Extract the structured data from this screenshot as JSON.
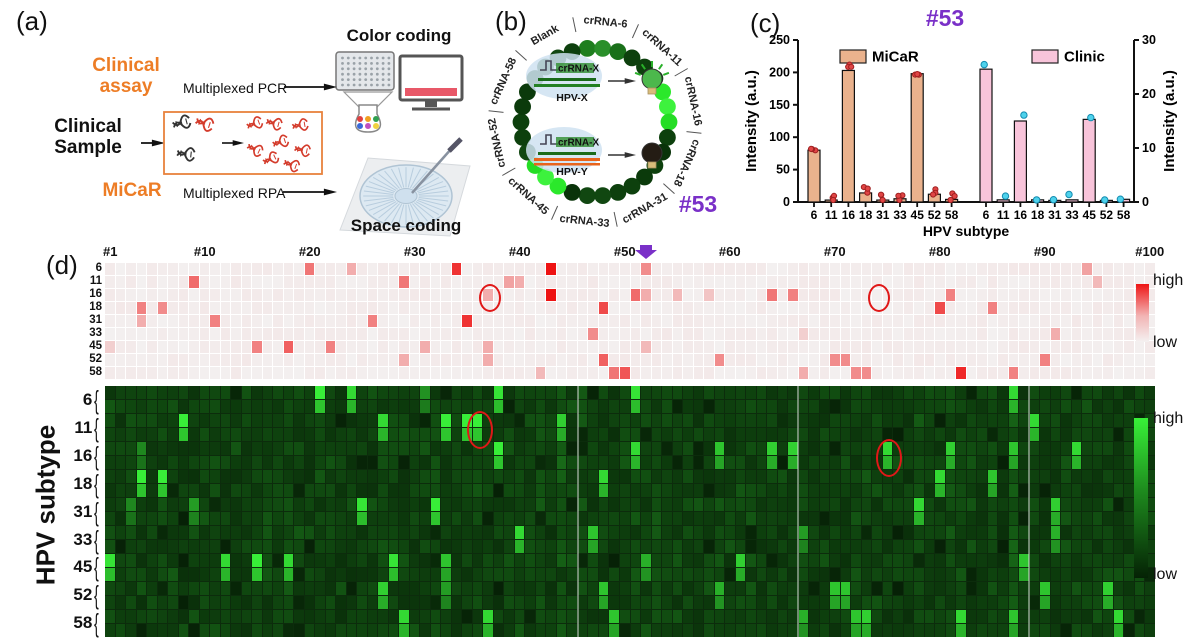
{
  "colors": {
    "accent_orange": "#ED7D26",
    "accent_purple": "#7A30C8",
    "micar_bar": "#EAB28D",
    "clinic_bar": "#F8C4DA",
    "micar_dot": "#E04545",
    "clinic_dot": "#4ED2EC",
    "heat_red_high": "#EE1414",
    "heat_red_low": "#F4F1F1",
    "heat_green_high": "#38F038",
    "heat_green_low": "#052205"
  },
  "figure": {
    "panel_a": {
      "label": "(a)",
      "clinical_assay": "Clinical assay",
      "clinical_sample": "Clinical Sample",
      "micar": "MiCaR",
      "multiplexed_pcr": "Multiplexed PCR",
      "multiplexed_rpa": "Multiplexed RPA",
      "color_coding": "Color coding",
      "space_coding": "Space coding"
    },
    "panel_b": {
      "label": "(b)",
      "sample_id": "#53",
      "ring_labels": [
        "crRNA-6",
        "crRNA-11",
        "crRNA-16",
        "crRNA-18",
        "crRNA-31",
        "crRNA-33",
        "crRNA-45",
        "crRNA-52",
        "crRNA-58",
        "Blank"
      ],
      "bright_wells": [
        "crRNA-16",
        "crRNA-45"
      ],
      "medium_wells": [
        "crRNA-6"
      ],
      "reporter_positive": {
        "crRNA": "crRNA-X",
        "target": "HPV-X"
      },
      "reporter_negative": {
        "crRNA": "crRNA-X",
        "target": "HPV-Y"
      }
    },
    "panel_c": {
      "label": "(c)"
    },
    "panel_d": {
      "label": "(d)",
      "ylabel": "HPV subtype"
    }
  },
  "chart_data": [
    {
      "type": "bar",
      "title": "#53",
      "categories": [
        "6",
        "11",
        "16",
        "18",
        "31",
        "33",
        "45",
        "52",
        "58"
      ],
      "series": [
        {
          "name": "MiCaR",
          "axis": "left",
          "color": "#EAB28D",
          "values": [
            80,
            3,
            203,
            14,
            3,
            5,
            198,
            12,
            4
          ]
        },
        {
          "name": "Clinic",
          "axis": "right",
          "color": "#F8C4DA",
          "values": [
            24.6,
            0.4,
            15.0,
            0.4,
            0.3,
            0.4,
            15.3,
            0.3,
            0.5
          ]
        }
      ],
      "left_axis": {
        "label": "Intensity (a.u.)",
        "ticks": [
          0,
          50,
          100,
          150,
          200,
          250
        ],
        "max": 250
      },
      "right_axis": {
        "label": "Intensity (a.u.)",
        "ticks": [
          0,
          10,
          20,
          30
        ],
        "max": 30
      },
      "xlabel": "HPV subtype",
      "legend_position": "top"
    },
    {
      "type": "heatmap",
      "name": "clinic-pcr-heatmap",
      "rows": [
        "6",
        "11",
        "16",
        "18",
        "31",
        "33",
        "45",
        "52",
        "58"
      ],
      "cols": 100,
      "col_ticks": [
        "#1",
        "#10",
        "#20",
        "#30",
        "#40",
        "#50",
        "#60",
        "#70",
        "#80",
        "#90",
        "#100"
      ],
      "colorscale": {
        "high": "#EE1414",
        "low": "#F4F1F1",
        "label_high": "high",
        "label_low": "low"
      },
      "positives": [
        {
          "row": "6",
          "cells": [
            [
              20,
              0.55
            ],
            [
              24,
              0.3
            ],
            [
              34,
              0.85
            ],
            [
              43,
              1.0
            ],
            [
              52,
              0.45
            ],
            [
              94,
              0.35
            ]
          ]
        },
        {
          "row": "11",
          "cells": [
            [
              9,
              0.6
            ],
            [
              29,
              0.55
            ],
            [
              39,
              0.35
            ],
            [
              40,
              0.3
            ],
            [
              95,
              0.25
            ]
          ]
        },
        {
          "row": "16",
          "cells": [
            [
              37,
              0.3
            ],
            [
              43,
              1.0
            ],
            [
              51,
              0.6
            ],
            [
              52,
              0.3
            ],
            [
              55,
              0.25
            ],
            [
              58,
              0.2
            ],
            [
              64,
              0.55
            ],
            [
              66,
              0.5
            ],
            [
              81,
              0.5
            ]
          ]
        },
        {
          "row": "18",
          "cells": [
            [
              4,
              0.5
            ],
            [
              6,
              0.45
            ],
            [
              48,
              0.75
            ],
            [
              80,
              0.75
            ],
            [
              85,
              0.5
            ]
          ]
        },
        {
          "row": "31",
          "cells": [
            [
              4,
              0.3
            ],
            [
              11,
              0.5
            ],
            [
              26,
              0.5
            ],
            [
              35,
              0.85
            ]
          ]
        },
        {
          "row": "33",
          "cells": [
            [
              47,
              0.45
            ],
            [
              67,
              0.15
            ],
            [
              91,
              0.3
            ]
          ]
        },
        {
          "row": "45",
          "cells": [
            [
              1,
              0.15
            ],
            [
              15,
              0.5
            ],
            [
              18,
              0.65
            ],
            [
              22,
              0.5
            ],
            [
              31,
              0.3
            ],
            [
              37,
              0.3
            ],
            [
              52,
              0.25
            ]
          ]
        },
        {
          "row": "52",
          "cells": [
            [
              29,
              0.3
            ],
            [
              37,
              0.3
            ],
            [
              48,
              0.65
            ],
            [
              59,
              0.45
            ],
            [
              70,
              0.45
            ],
            [
              71,
              0.45
            ],
            [
              90,
              0.5
            ]
          ]
        },
        {
          "row": "58",
          "cells": [
            [
              42,
              0.25
            ],
            [
              49,
              0.55
            ],
            [
              50,
              0.7
            ],
            [
              67,
              0.3
            ],
            [
              72,
              0.45
            ],
            [
              73,
              0.45
            ],
            [
              82,
              0.9
            ],
            [
              87,
              0.5
            ]
          ]
        }
      ],
      "annotations": {
        "circles": [
          {
            "col": 37,
            "row": "16"
          },
          {
            "col": 74,
            "row": "16"
          }
        ],
        "arrow_col": 52
      }
    },
    {
      "type": "heatmap",
      "name": "micar-heatmap",
      "rows": [
        "6",
        "11",
        "16",
        "18",
        "31",
        "33",
        "45",
        "52",
        "58"
      ],
      "rows_per_group": 2,
      "cols": 100,
      "colorscale": {
        "high": "#38F038",
        "low": "#052205",
        "label_high": "high",
        "label_low": "low"
      },
      "positives": [
        {
          "row": "6",
          "cells": [
            [
              21,
              1.0
            ],
            [
              24,
              0.9
            ],
            [
              31,
              0.55
            ],
            [
              38,
              0.95
            ],
            [
              51,
              0.95
            ],
            [
              87,
              0.9
            ]
          ]
        },
        {
          "row": "11",
          "cells": [
            [
              8,
              1.0
            ],
            [
              27,
              0.9
            ],
            [
              33,
              1.0
            ],
            [
              35,
              1.0
            ],
            [
              36,
              1.0
            ],
            [
              44,
              0.85
            ],
            [
              89,
              0.9
            ]
          ]
        },
        {
          "row": "16",
          "cells": [
            [
              4,
              0.5
            ],
            [
              38,
              1.0
            ],
            [
              51,
              0.9
            ],
            [
              59,
              0.8
            ],
            [
              64,
              0.85
            ],
            [
              66,
              0.85
            ],
            [
              75,
              0.9
            ],
            [
              81,
              0.85
            ],
            [
              87,
              0.8
            ],
            [
              93,
              0.9
            ]
          ]
        },
        {
          "row": "18",
          "cells": [
            [
              4,
              1.0
            ],
            [
              6,
              1.0
            ],
            [
              48,
              0.9
            ],
            [
              80,
              0.9
            ],
            [
              85,
              0.8
            ]
          ]
        },
        {
          "row": "31",
          "cells": [
            [
              3,
              0.5
            ],
            [
              9,
              0.6
            ],
            [
              25,
              0.95
            ],
            [
              32,
              1.0
            ],
            [
              78,
              0.9
            ],
            [
              91,
              0.85
            ]
          ]
        },
        {
          "row": "33",
          "cells": [
            [
              40,
              0.9
            ],
            [
              47,
              0.8
            ],
            [
              67,
              0.6
            ],
            [
              91,
              0.7
            ]
          ]
        },
        {
          "row": "45",
          "cells": [
            [
              1,
              0.95
            ],
            [
              12,
              0.9
            ],
            [
              15,
              1.0
            ],
            [
              18,
              0.9
            ],
            [
              28,
              0.95
            ],
            [
              33,
              0.8
            ],
            [
              52,
              0.7
            ],
            [
              61,
              0.85
            ],
            [
              88,
              0.8
            ]
          ]
        },
        {
          "row": "52",
          "cells": [
            [
              27,
              0.85
            ],
            [
              33,
              0.6
            ],
            [
              48,
              0.8
            ],
            [
              59,
              0.7
            ],
            [
              70,
              0.8
            ],
            [
              71,
              0.8
            ],
            [
              90,
              0.8
            ],
            [
              96,
              0.85
            ]
          ]
        },
        {
          "row": "58",
          "cells": [
            [
              29,
              0.9
            ],
            [
              37,
              0.9
            ],
            [
              49,
              0.8
            ],
            [
              67,
              0.7
            ],
            [
              72,
              0.8
            ],
            [
              73,
              0.85
            ],
            [
              82,
              0.9
            ],
            [
              87,
              0.8
            ],
            [
              97,
              0.9
            ]
          ]
        }
      ],
      "annotations": {
        "circles": [
          {
            "col": 36,
            "row": "11"
          },
          {
            "col": 75,
            "row": "16"
          }
        ]
      }
    }
  ]
}
